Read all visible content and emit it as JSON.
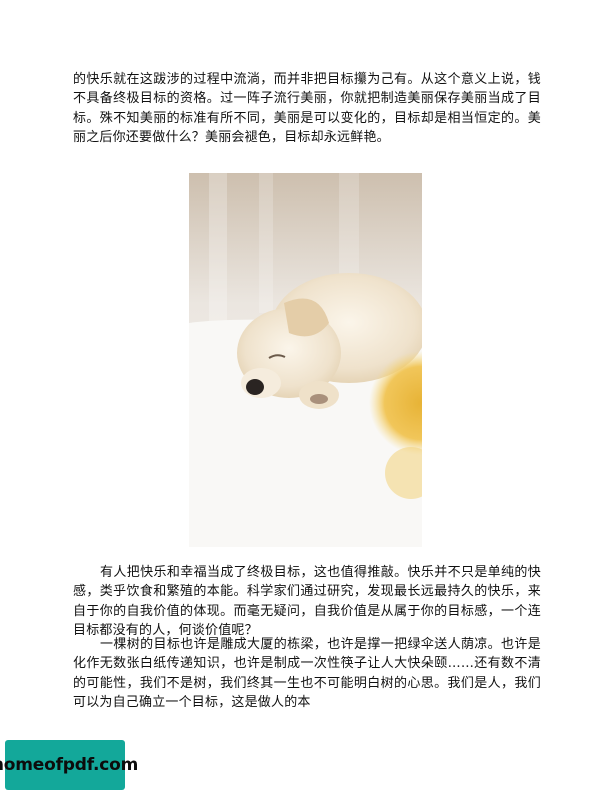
{
  "document": {
    "paragraphs": [
      "的快乐就在这跋涉的过程中流淌，而并非把目标攥为己有。从这个意义上说，钱不具备终极目标的资格。过一阵子流行美丽，你就把制造美丽保存美丽当成了目标。殊不知美丽的标准有所不同，美丽是可以变化的，目标却是相当恒定的。美丽之后你还要做什么？美丽会褪色，目标却永远鲜艳。",
      "有人把快乐和幸福当成了终极目标，这也值得推敲。快乐并不只是单纯的快感，类乎饮食和繁殖的本能。科学家们通过研究，发现最长远最持久的快乐，来自于你的自我价值的体现。而毫无疑问，自我价值是从属于你的目标感，一个连目标都没有的人，何谈价值呢？",
      "一棵树的目标也许是雕成大厦的栋梁，也许是撑一把绿伞送人荫凉。也许是化作无数张白纸传递知识，也许是制成一次性筷子让人大快朵颐……还有数不清的可能性，我们不是树，我们终其一生也不可能明白树的心思。我们是人，我们可以为自己确立一个目标，这是做人的本"
    ]
  },
  "watermark": {
    "text": "homeofpdf.com",
    "color": "#13a89a"
  },
  "photo": {
    "subject": "sleeping-puppy-with-yellow-flower"
  }
}
